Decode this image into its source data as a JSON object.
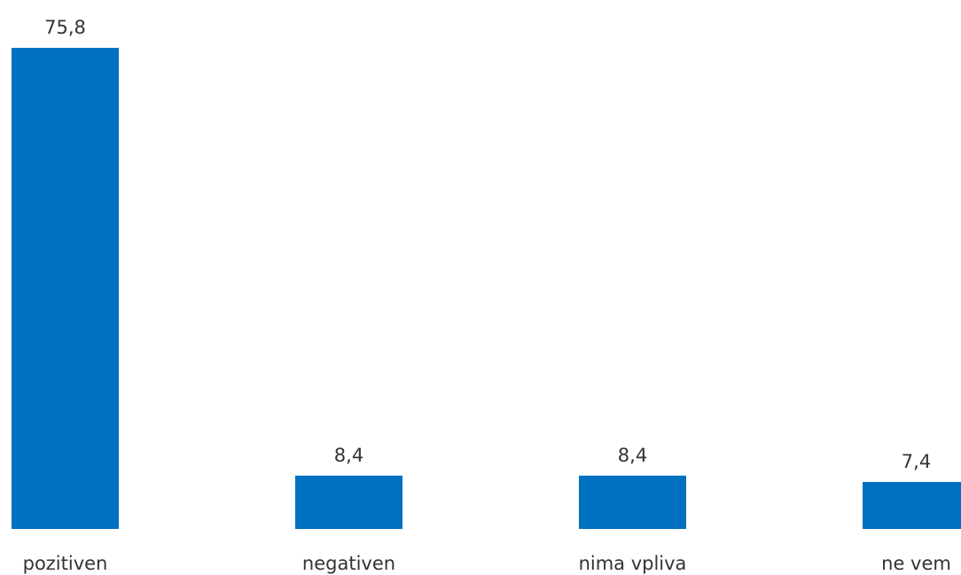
{
  "chart_data": {
    "type": "bar",
    "categories": [
      "pozitiven",
      "negativen",
      "nima vpliva",
      "ne vem"
    ],
    "values": [
      75.8,
      8.4,
      8.4,
      7.4
    ],
    "value_labels": [
      "75,8",
      "8,4",
      "8,4",
      "7,4"
    ],
    "title": "",
    "xlabel": "",
    "ylabel": "",
    "ylim": [
      0,
      75.8
    ],
    "grid": false,
    "legend": "none",
    "bar_color": "#0070C0"
  }
}
